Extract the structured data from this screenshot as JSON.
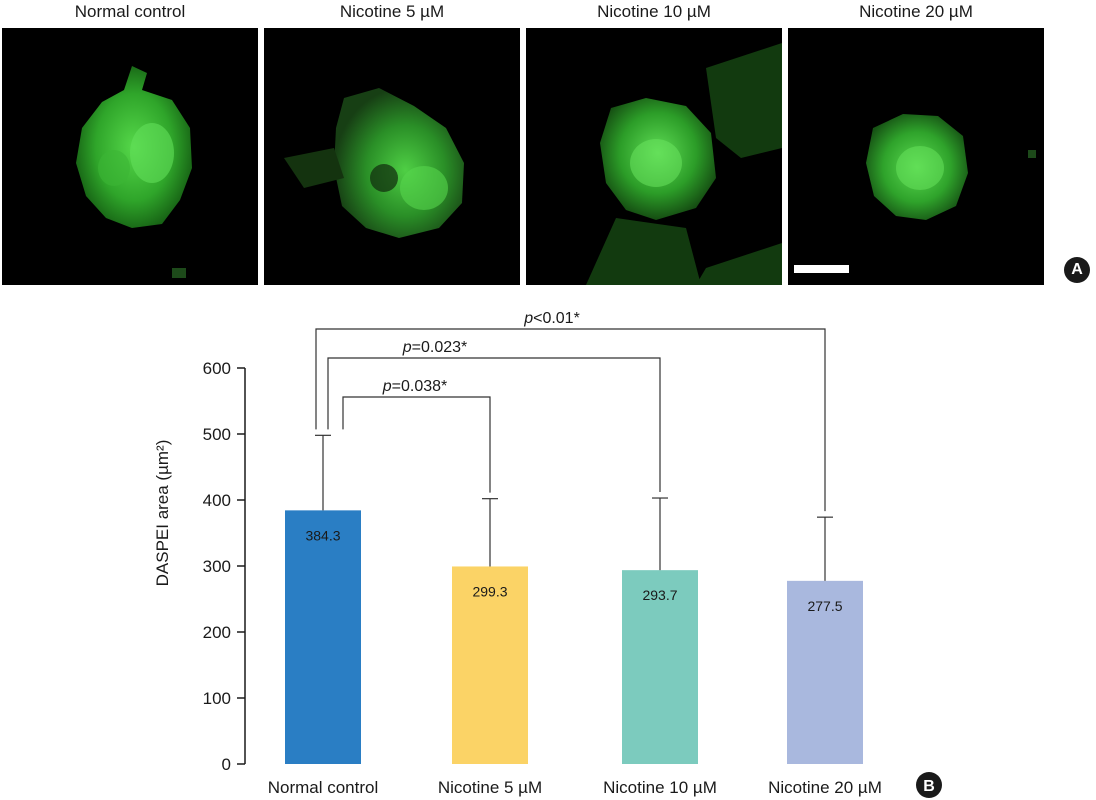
{
  "panel_a": {
    "badge": "A",
    "images": [
      {
        "title": "Normal control"
      },
      {
        "title": "Nicotine 5 µM"
      },
      {
        "title": "Nicotine 10 µM"
      },
      {
        "title": "Nicotine 20 µM"
      }
    ]
  },
  "chart_data": {
    "type": "bar",
    "badge": "B",
    "ylabel": "DASPEI area (µm²)",
    "ylim": [
      0,
      600
    ],
    "yticks": [
      0,
      100,
      200,
      300,
      400,
      500,
      600
    ],
    "categories": [
      "Normal control",
      "Nicotine 5 µM",
      "Nicotine 10 µM",
      "Nicotine 20 µM"
    ],
    "values": [
      384.3,
      299.3,
      293.7,
      277.5
    ],
    "value_labels": [
      "384.3",
      "299.3",
      "293.7",
      "277.5"
    ],
    "error_upper": [
      498,
      402,
      403,
      374
    ],
    "colors": [
      "#2a7ec4",
      "#fbd366",
      "#7ccbbe",
      "#a9b8de"
    ],
    "comparisons": [
      {
        "from": 0,
        "to": 1,
        "label": "p=0.038*"
      },
      {
        "from": 0,
        "to": 2,
        "label": "p=0.023*"
      },
      {
        "from": 0,
        "to": 3,
        "label": "p<0.01*"
      }
    ]
  }
}
